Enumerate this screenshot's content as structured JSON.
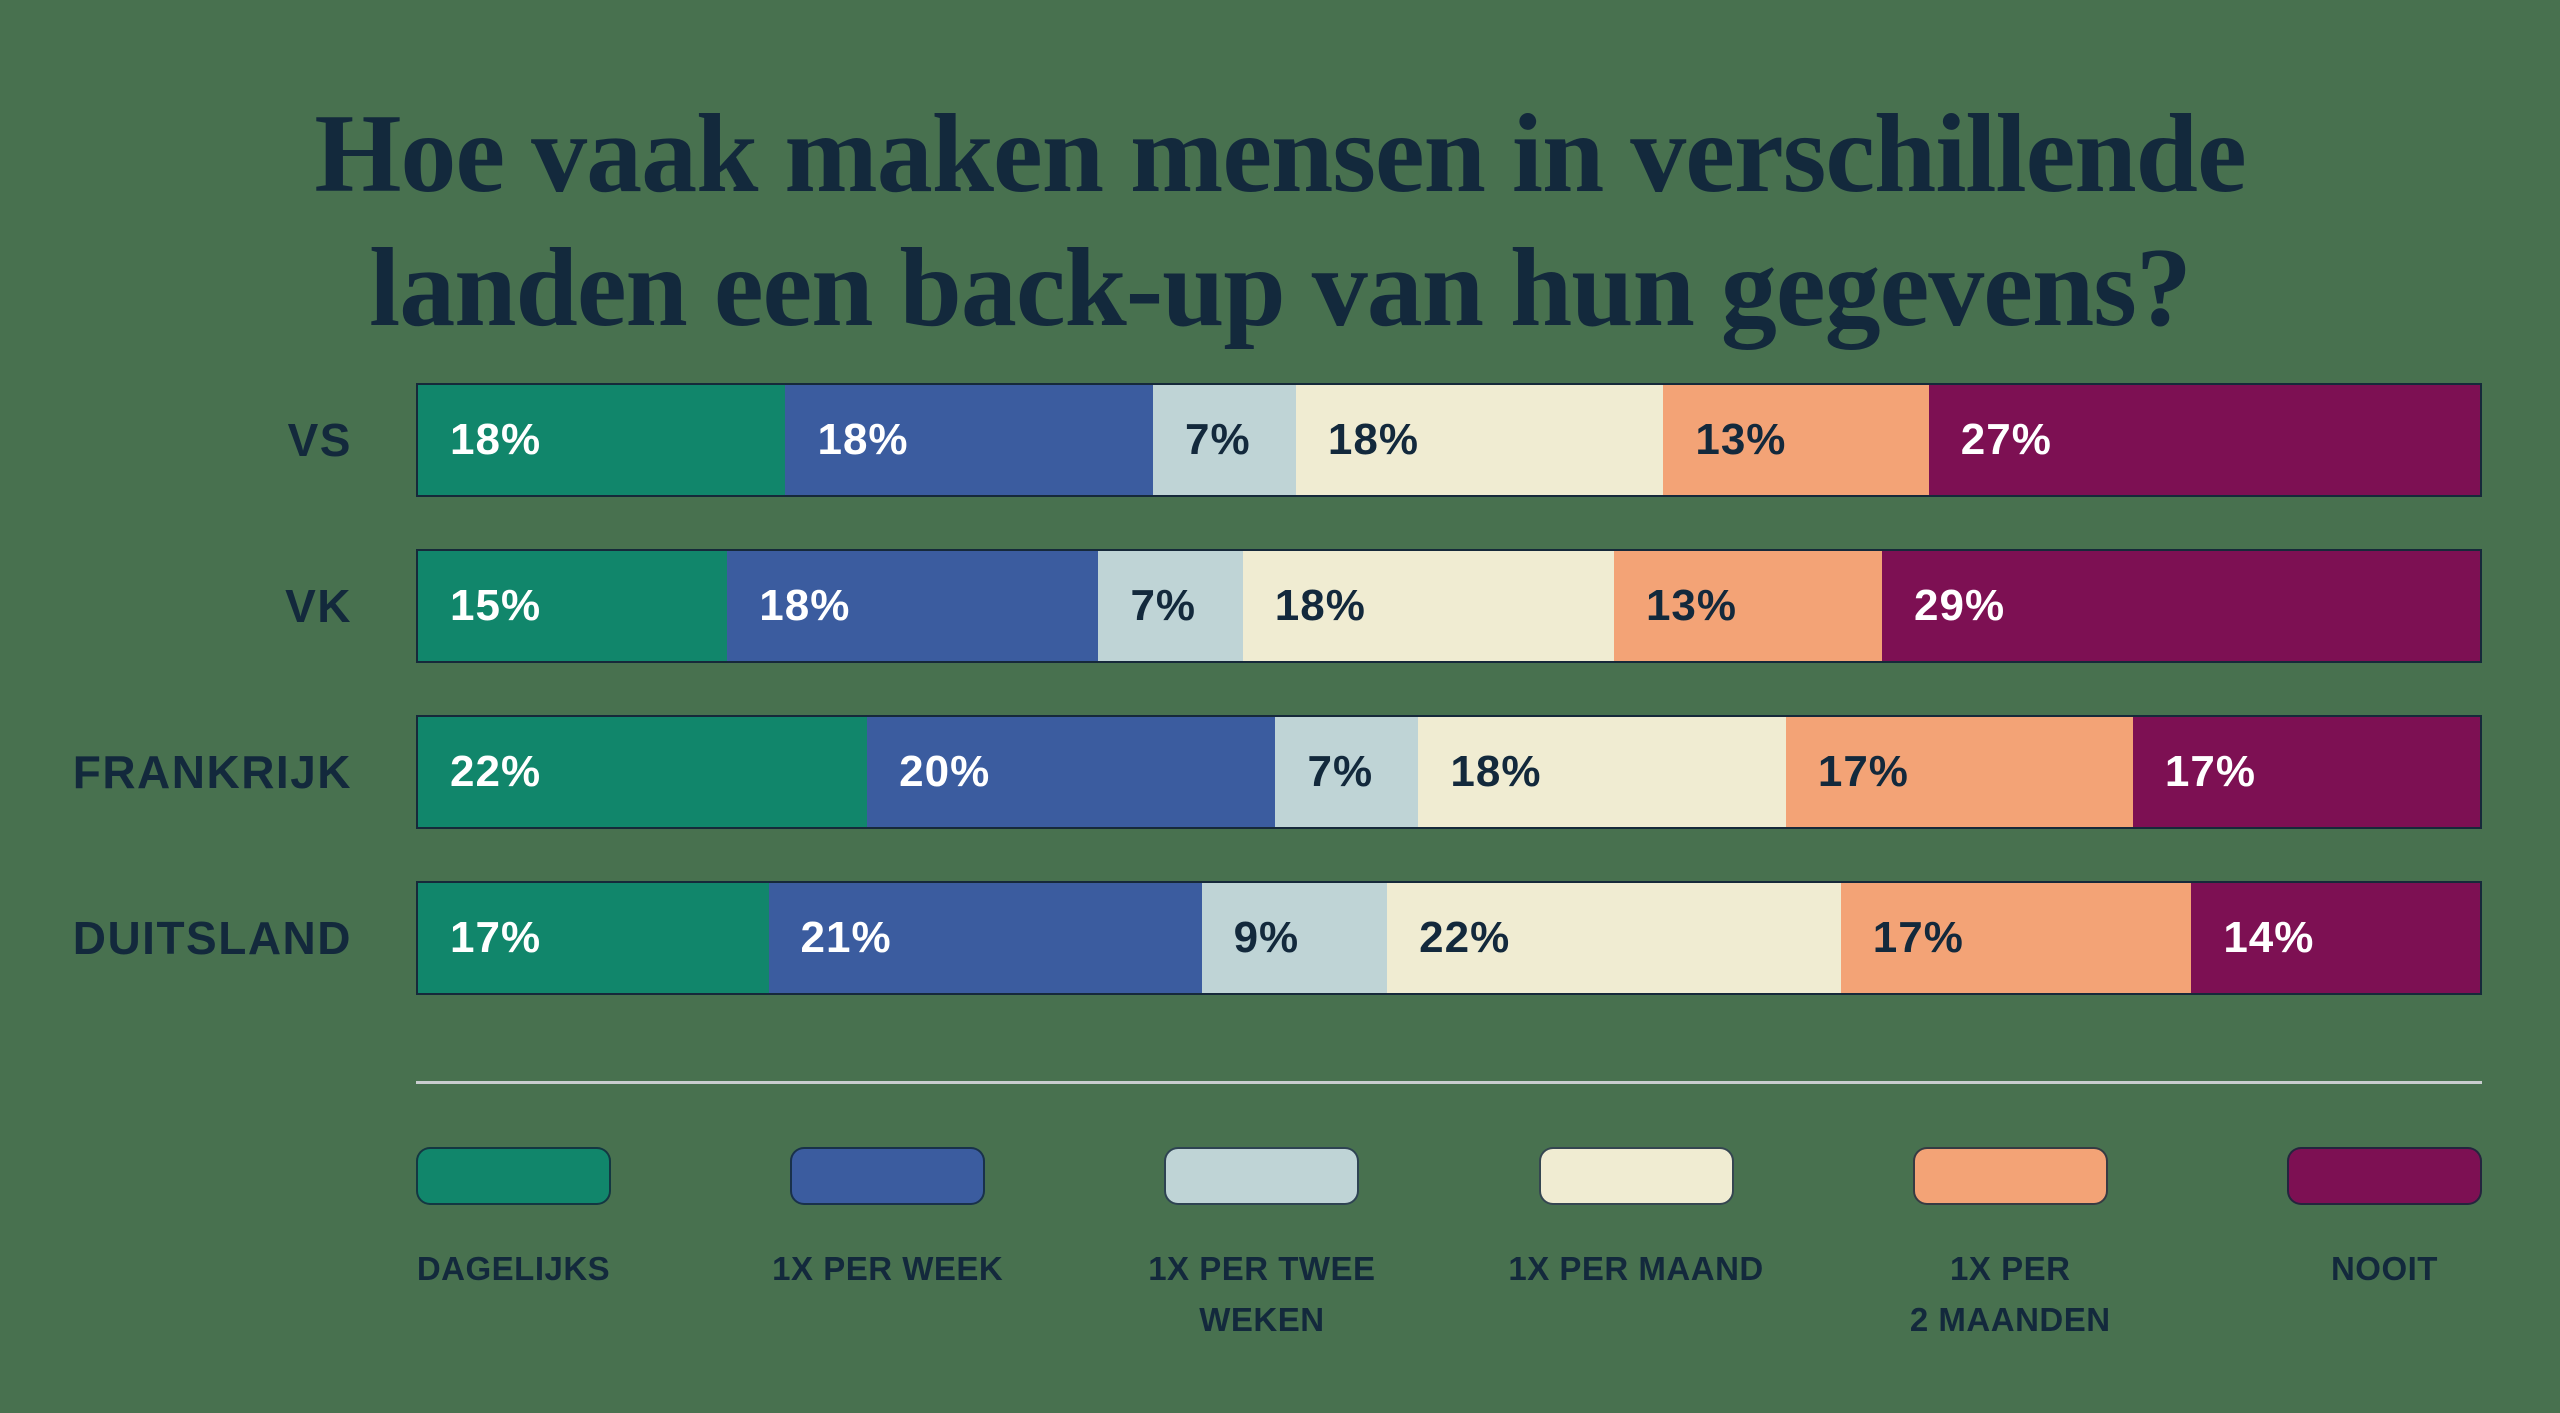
{
  "title": {
    "line1": "Hoe vaak maken mensen in verschillende",
    "line2": "landen een back-up van hun gegevens?"
  },
  "colors": {
    "background": "#48714F",
    "title_text": "#13293C",
    "bar_border": "#16293A",
    "divider": "#C9CDCF",
    "label_on_dark": "#FFFFFF",
    "label_on_light": "#13293C"
  },
  "chart_data": {
    "type": "bar",
    "stacked": true,
    "orientation": "horizontal",
    "title": "Hoe vaak maken mensen in verschillende landen een back-up van hun gegevens?",
    "categories": [
      "VS",
      "VK",
      "FRANKRIJK",
      "DUITSLAND"
    ],
    "series": [
      {
        "name": "DAGELIJKS",
        "color": "#11866B",
        "text_color": "#FFFFFF",
        "values": [
          18,
          15,
          22,
          17
        ]
      },
      {
        "name": "1X PER WEEK",
        "color": "#3B5C9F",
        "text_color": "#FFFFFF",
        "values": [
          18,
          18,
          20,
          21
        ]
      },
      {
        "name": "1X PER TWEE WEKEN",
        "color": "#BFD4D6",
        "text_color": "#13293C",
        "values": [
          7,
          7,
          7,
          9
        ]
      },
      {
        "name": "1X PER MAAND",
        "color": "#F0ECD2",
        "text_color": "#13293C",
        "values": [
          18,
          18,
          18,
          22
        ]
      },
      {
        "name": "1X PER 2 MAANDEN",
        "color": "#F3A376",
        "text_color": "#13293C",
        "values": [
          13,
          13,
          17,
          17
        ]
      },
      {
        "name": "NOOIT",
        "color": "#7D1053",
        "text_color": "#FFFFFF",
        "values": [
          27,
          29,
          17,
          14
        ]
      }
    ],
    "value_suffix": "%",
    "legend_position": "bottom",
    "grid": false
  },
  "legend": {
    "items": [
      {
        "label": "DAGELIJKS",
        "lines": [
          "DAGELIJKS"
        ],
        "color": "#11866B"
      },
      {
        "label": "1X PER WEEK",
        "lines": [
          "1X PER WEEK"
        ],
        "color": "#3B5C9F"
      },
      {
        "label": "1X PER TWEE WEKEN",
        "lines": [
          "1X PER TWEE",
          "WEKEN"
        ],
        "color": "#BFD4D6"
      },
      {
        "label": "1X PER MAAND",
        "lines": [
          "1X PER MAAND"
        ],
        "color": "#F0ECD2"
      },
      {
        "label": "1X PER 2 MAANDEN",
        "lines": [
          "1X PER",
          "2 MAANDEN"
        ],
        "color": "#F3A376"
      },
      {
        "label": "NOOIT",
        "lines": [
          "NOOIT"
        ],
        "color": "#7D1053"
      }
    ]
  }
}
